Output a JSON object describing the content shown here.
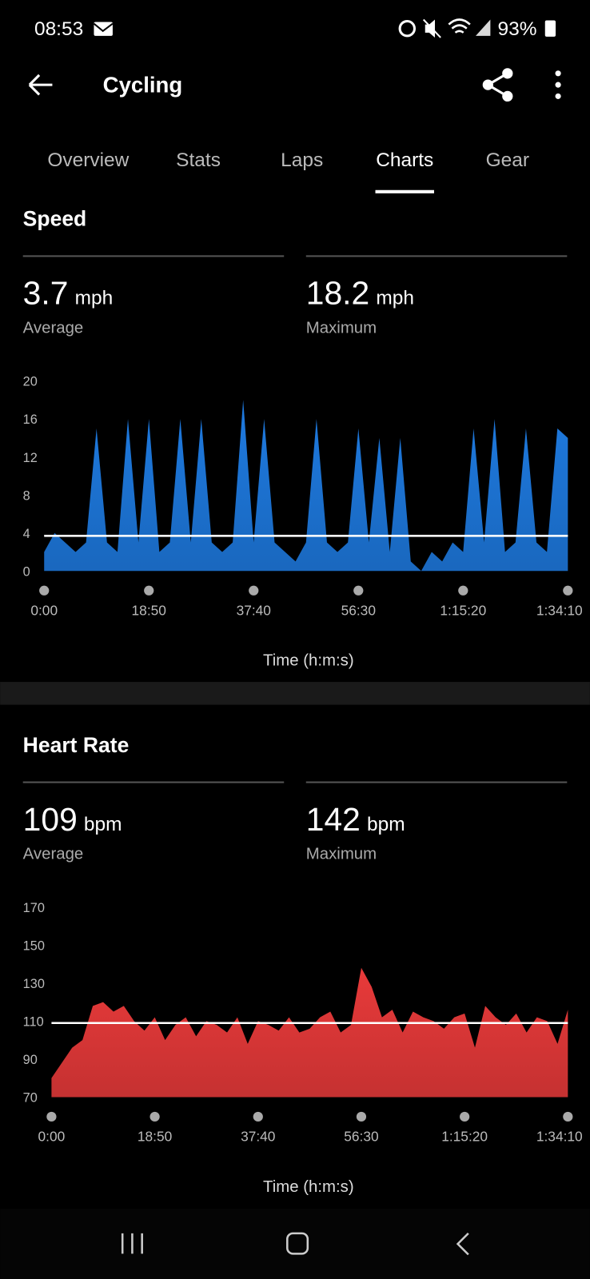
{
  "status_bar": {
    "time": "08:53",
    "battery": "93%"
  },
  "header": {
    "title": "Cycling"
  },
  "tabs": [
    "Overview",
    "Stats",
    "Laps",
    "Charts",
    "Gear"
  ],
  "active_tab": 3,
  "chart_data": [
    {
      "type": "area",
      "title": "Speed",
      "color": "#1e7ae0",
      "stats": [
        {
          "value": 3.7,
          "unit": "mph",
          "label": "Average"
        },
        {
          "value": 18.2,
          "unit": "mph",
          "label": "Maximum"
        }
      ],
      "xlabel": "Time (h:m:s)",
      "x": [
        0,
        113,
        226,
        339,
        452,
        565,
        678,
        791,
        904,
        1017,
        1130,
        1243,
        1356,
        1469,
        1582,
        1695,
        1808,
        1921,
        2034,
        2147,
        2260,
        2373,
        2486,
        2599,
        2712,
        2825,
        2938,
        3051,
        3164,
        3277,
        3390,
        3503,
        3616,
        3729,
        3842,
        3955,
        4068,
        4181,
        4294,
        4407,
        4520,
        4633,
        4746,
        4859,
        4972,
        5085,
        5198,
        5311,
        5424,
        5537,
        5650
      ],
      "values": [
        2,
        4,
        3,
        2,
        3,
        15,
        3,
        2,
        16,
        3,
        16,
        2,
        3,
        16,
        3,
        16,
        3,
        2,
        3,
        18,
        3,
        16,
        3,
        2,
        1,
        3,
        16,
        3,
        2,
        3,
        15,
        3,
        14,
        2,
        14,
        1,
        0,
        2,
        1,
        3,
        2,
        15,
        3,
        16,
        2,
        3,
        15,
        3,
        2,
        15,
        14
      ],
      "xlim": [
        0,
        5650
      ],
      "ylim": [
        0,
        20
      ],
      "yticks": [
        0,
        4,
        8,
        12,
        16,
        20
      ],
      "xticks": [
        {
          "value": 0,
          "label": "0:00"
        },
        {
          "value": 1130,
          "label": "18:50"
        },
        {
          "value": 2260,
          "label": "37:40"
        },
        {
          "value": 3390,
          "label": "56:30"
        },
        {
          "value": 4520,
          "label": "1:15:20"
        },
        {
          "value": 5650,
          "label": "1:34:10"
        }
      ]
    },
    {
      "type": "area",
      "title": "Heart Rate",
      "color": "#e83a3a",
      "stats": [
        {
          "value": 109,
          "unit": "bpm",
          "label": "Average"
        },
        {
          "value": 142,
          "unit": "bpm",
          "label": "Maximum"
        }
      ],
      "xlabel": "Time (h:m:s)",
      "x": [
        0,
        113,
        226,
        339,
        452,
        565,
        678,
        791,
        904,
        1017,
        1130,
        1243,
        1356,
        1469,
        1582,
        1695,
        1808,
        1921,
        2034,
        2147,
        2260,
        2373,
        2486,
        2599,
        2712,
        2825,
        2938,
        3051,
        3164,
        3277,
        3390,
        3503,
        3616,
        3729,
        3842,
        3955,
        4068,
        4181,
        4294,
        4407,
        4520,
        4633,
        4746,
        4859,
        4972,
        5085,
        5198,
        5311,
        5424,
        5537,
        5650
      ],
      "values": [
        80,
        88,
        96,
        100,
        118,
        120,
        115,
        118,
        110,
        105,
        112,
        100,
        108,
        112,
        102,
        110,
        108,
        104,
        112,
        98,
        110,
        108,
        105,
        112,
        104,
        106,
        112,
        115,
        104,
        108,
        138,
        128,
        112,
        116,
        104,
        115,
        112,
        110,
        106,
        112,
        114,
        96,
        118,
        112,
        108,
        114,
        104,
        112,
        110,
        98,
        116
      ],
      "xlim": [
        0,
        5650
      ],
      "ylim": [
        70,
        170
      ],
      "yticks": [
        70,
        90,
        110,
        130,
        150,
        170
      ],
      "xticks": [
        {
          "value": 0,
          "label": "0:00"
        },
        {
          "value": 1130,
          "label": "18:50"
        },
        {
          "value": 2260,
          "label": "37:40"
        },
        {
          "value": 3390,
          "label": "56:30"
        },
        {
          "value": 4520,
          "label": "1:15:20"
        },
        {
          "value": 5650,
          "label": "1:34:10"
        }
      ]
    }
  ]
}
